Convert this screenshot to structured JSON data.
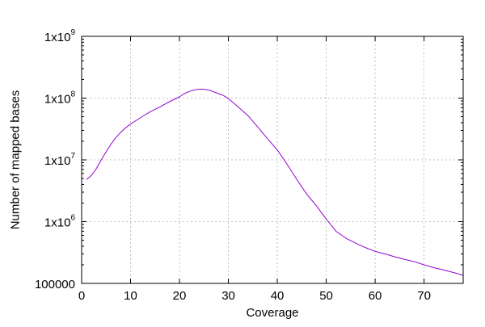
{
  "chart_data": {
    "type": "line",
    "title": "",
    "xlabel": "Coverage",
    "ylabel": "Number of mapped bases",
    "xlim": [
      0,
      78
    ],
    "ylim": [
      100000,
      1000000000
    ],
    "y_scale": "log",
    "grid": true,
    "x_ticks": [
      {
        "value": 0,
        "label": "0"
      },
      {
        "value": 10,
        "label": "10"
      },
      {
        "value": 20,
        "label": "20"
      },
      {
        "value": 30,
        "label": "30"
      },
      {
        "value": 40,
        "label": "40"
      },
      {
        "value": 50,
        "label": "50"
      },
      {
        "value": 60,
        "label": "60"
      },
      {
        "value": 70,
        "label": "70"
      }
    ],
    "y_ticks": [
      {
        "value": 100000,
        "mantissa": "100000",
        "exponent": ""
      },
      {
        "value": 1000000,
        "mantissa": "1x10",
        "exponent": "6"
      },
      {
        "value": 10000000,
        "mantissa": "1x10",
        "exponent": "7"
      },
      {
        "value": 100000000,
        "mantissa": "1x10",
        "exponent": "8"
      },
      {
        "value": 1000000000,
        "mantissa": "1x10",
        "exponent": "9"
      }
    ],
    "series": [
      {
        "color": "#9400d3",
        "points": [
          [
            1,
            4800000
          ],
          [
            2,
            5600000
          ],
          [
            3,
            7200000
          ],
          [
            4,
            10000000
          ],
          [
            5,
            13500000
          ],
          [
            6,
            18000000
          ],
          [
            7,
            23000000
          ],
          [
            8,
            28000000
          ],
          [
            9,
            33000000
          ],
          [
            10,
            38000000
          ],
          [
            12,
            48000000
          ],
          [
            14,
            60000000
          ],
          [
            16,
            72000000
          ],
          [
            18,
            88000000
          ],
          [
            20,
            105000000
          ],
          [
            21,
            118000000
          ],
          [
            22,
            128000000
          ],
          [
            23,
            135000000
          ],
          [
            24,
            140000000
          ],
          [
            25,
            139000000
          ],
          [
            26,
            135000000
          ],
          [
            27,
            126000000
          ],
          [
            28,
            118000000
          ],
          [
            29,
            110000000
          ],
          [
            30,
            98000000
          ],
          [
            32,
            72000000
          ],
          [
            34,
            52000000
          ],
          [
            36,
            34000000
          ],
          [
            38,
            22000000
          ],
          [
            40,
            14500000
          ],
          [
            42,
            8500000
          ],
          [
            44,
            4800000
          ],
          [
            46,
            2800000
          ],
          [
            48,
            1800000
          ],
          [
            50,
            1100000
          ],
          [
            52,
            700000
          ],
          [
            54,
            540000
          ],
          [
            56,
            450000
          ],
          [
            58,
            380000
          ],
          [
            60,
            330000
          ],
          [
            62,
            300000
          ],
          [
            64,
            270000
          ],
          [
            66,
            245000
          ],
          [
            68,
            225000
          ],
          [
            70,
            200000
          ],
          [
            72,
            180000
          ],
          [
            74,
            165000
          ],
          [
            76,
            150000
          ],
          [
            78,
            135000
          ]
        ]
      }
    ]
  }
}
